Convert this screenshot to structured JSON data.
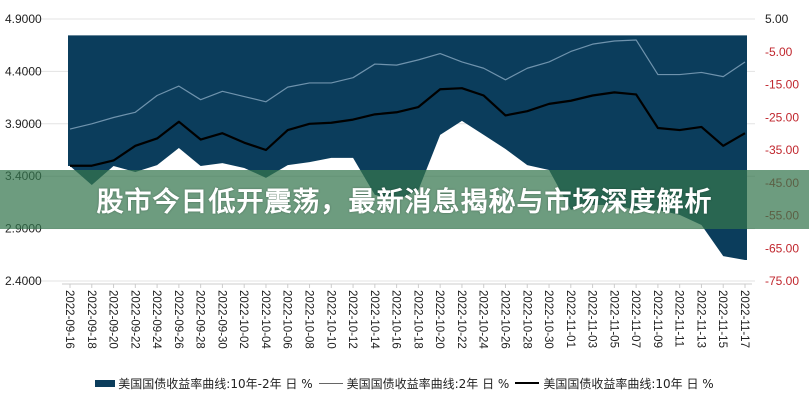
{
  "banner": {
    "title": "股市今日低开震荡，最新消息揭秘与市场深度解析"
  },
  "chart_data": {
    "type": "line",
    "title": "",
    "x": [
      "2022-09-16",
      "2022-09-18",
      "2022-09-20",
      "2022-09-22",
      "2022-09-24",
      "2022-09-26",
      "2022-09-28",
      "2022-09-30",
      "2022-10-02",
      "2022-10-04",
      "2022-10-06",
      "2022-10-08",
      "2022-10-10",
      "2022-10-12",
      "2022-10-14",
      "2022-10-16",
      "2022-10-18",
      "2022-10-20",
      "2022-10-22",
      "2022-10-24",
      "2022-10-26",
      "2022-10-28",
      "2022-10-30",
      "2022-11-01",
      "2022-11-03",
      "2022-11-05",
      "2022-11-07",
      "2022-11-09",
      "2022-11-11",
      "2022-11-13",
      "2022-11-15",
      "2022-11-17"
    ],
    "left_axis": {
      "ticks": [
        "4.9000",
        "4.4000",
        "3.9000",
        "3.4000",
        "2.9000",
        "2.4000"
      ],
      "range": [
        2.4,
        4.9
      ]
    },
    "right_axis": {
      "ticks": [
        "5.00",
        "-5.00",
        "-15.00",
        "-25.00",
        "-35.00",
        "-45.00",
        "-55.00",
        "-65.00",
        "-75.00"
      ],
      "range": [
        -75,
        5
      ],
      "negative_color": "#c0262d"
    },
    "series": [
      {
        "name": "美国国债收益率曲线:10年-2年 日 %",
        "kind": "area",
        "axis": "right",
        "color": "#0b3d5c",
        "values": [
          -39.9,
          -45.7,
          -39.9,
          -41.7,
          -39.6,
          -34.4,
          -39.9,
          -39.0,
          -40.5,
          -43.5,
          -39.6,
          -38.7,
          -37.4,
          -37.4,
          -48.7,
          -50.3,
          -47.2,
          -30.4,
          -26.1,
          -30.4,
          -34.7,
          -39.6,
          -41.1,
          -53.3,
          -51.8,
          -51.8,
          -53.3,
          -53.3,
          -54.8,
          -57.9,
          -67.4,
          -68.6
        ]
      },
      {
        "name": "美国国债收益率曲线:2年 日 %",
        "kind": "line",
        "axis": "left",
        "color": "#6f93ad",
        "values": [
          3.85,
          3.9,
          3.96,
          4.01,
          4.17,
          4.26,
          4.13,
          4.21,
          4.16,
          4.11,
          4.25,
          4.29,
          4.29,
          4.34,
          4.47,
          4.46,
          4.51,
          4.57,
          4.49,
          4.43,
          4.32,
          4.43,
          4.49,
          4.59,
          4.66,
          4.69,
          4.7,
          4.37,
          4.37,
          4.39,
          4.35,
          4.49
        ]
      },
      {
        "name": "美国国债收益率曲线:10年 日 %",
        "kind": "line",
        "axis": "left",
        "color": "#000000",
        "values": [
          3.5,
          3.5,
          3.55,
          3.69,
          3.76,
          3.92,
          3.75,
          3.81,
          3.72,
          3.65,
          3.84,
          3.9,
          3.91,
          3.94,
          3.99,
          4.01,
          4.06,
          4.23,
          4.24,
          4.17,
          3.98,
          4.02,
          4.09,
          4.12,
          4.17,
          4.2,
          4.18,
          3.86,
          3.84,
          3.87,
          3.69,
          3.81
        ]
      }
    ],
    "grid": true,
    "legend": "bottom"
  }
}
